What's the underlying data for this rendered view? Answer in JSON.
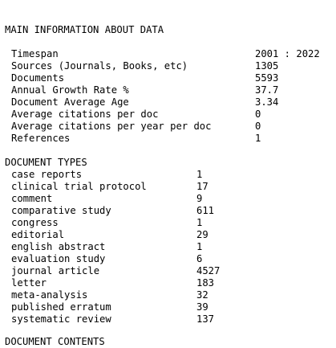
{
  "main_info": {
    "heading": "MAIN INFORMATION ABOUT DATA",
    "rows": [
      {
        "label": "Timespan",
        "value": "2001 : 2022"
      },
      {
        "label": "Sources (Journals, Books, etc)",
        "value": "1305"
      },
      {
        "label": "Documents",
        "value": "5593"
      },
      {
        "label": "Annual Growth Rate %",
        "value": "37.7"
      },
      {
        "label": "Document Average Age",
        "value": "3.34"
      },
      {
        "label": "Average citations per doc",
        "value": "0"
      },
      {
        "label": "Average citations per year per doc",
        "value": "0"
      },
      {
        "label": "References",
        "value": "1"
      }
    ]
  },
  "document_types": {
    "heading": "DOCUMENT TYPES",
    "rows": [
      {
        "label": "case reports",
        "value": "1"
      },
      {
        "label": "clinical trial protocol",
        "value": "17"
      },
      {
        "label": "comment",
        "value": "9"
      },
      {
        "label": "comparative study",
        "value": "611"
      },
      {
        "label": "congress",
        "value": "1"
      },
      {
        "label": "editorial",
        "value": "29"
      },
      {
        "label": "english abstract",
        "value": "1"
      },
      {
        "label": "evaluation study",
        "value": "6"
      },
      {
        "label": "journal article",
        "value": "4527"
      },
      {
        "label": "letter",
        "value": "183"
      },
      {
        "label": "meta-analysis",
        "value": "32"
      },
      {
        "label": "published erratum",
        "value": "39"
      },
      {
        "label": "systematic review",
        "value": "137"
      }
    ]
  },
  "next_section": {
    "heading": "DOCUMENT CONTENTS"
  }
}
